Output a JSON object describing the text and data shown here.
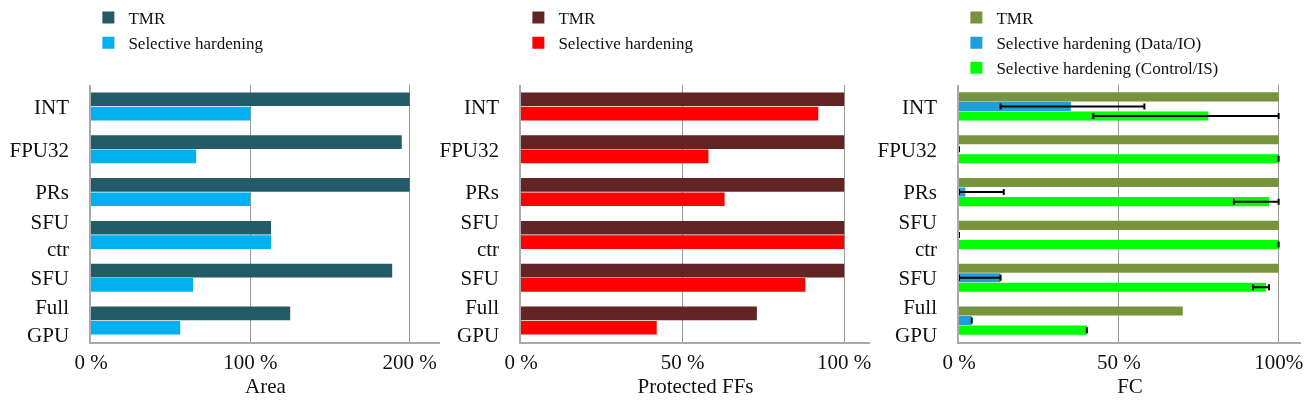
{
  "chart_data": [
    {
      "type": "bar",
      "orientation": "horizontal",
      "xlabel": "Area",
      "categories": [
        "INT",
        "FPU32",
        "PRs",
        "SFU ctr",
        "SFU",
        "Full GPU"
      ],
      "series": [
        {
          "name": "TMR",
          "color": "#245b68",
          "values": [
            200,
            195,
            200,
            113,
            189,
            125
          ]
        },
        {
          "name": "Selective hardening",
          "color": "#00b0f0",
          "values": [
            100,
            66,
            100,
            113,
            64,
            56
          ]
        }
      ],
      "xlim": [
        0,
        219
      ],
      "xticks": [
        {
          "value": 0,
          "label": "0 %"
        },
        {
          "value": 100,
          "label": "100 %"
        },
        {
          "value": 200,
          "label": "200 %"
        }
      ],
      "grid": "x",
      "legend": "top left"
    },
    {
      "type": "bar",
      "orientation": "horizontal",
      "xlabel": "Protected FFs",
      "categories": [
        "INT",
        "FPU32",
        "PRs",
        "SFU ctr",
        "SFU",
        "Full GPU"
      ],
      "series": [
        {
          "name": "TMR",
          "color": "#632523",
          "values": [
            100,
            100,
            100,
            100,
            100,
            73
          ]
        },
        {
          "name": "Selective hardening",
          "color": "#ff0000",
          "values": [
            92,
            58,
            63,
            100,
            88,
            42
          ]
        }
      ],
      "xlim": [
        0,
        108
      ],
      "xticks": [
        {
          "value": 0,
          "label": "0 %"
        },
        {
          "value": 50,
          "label": "50 %"
        },
        {
          "value": 100,
          "label": "100 %"
        }
      ],
      "grid": "x",
      "legend": "top left"
    },
    {
      "type": "bar",
      "orientation": "horizontal",
      "xlabel": "FC",
      "categories": [
        "INT",
        "FPU32",
        "PRs",
        "SFU ctr",
        "SFU",
        "Full GPU"
      ],
      "series": [
        {
          "name": "TMR",
          "color": "#77933c",
          "values": [
            100,
            100,
            100,
            100,
            100,
            70
          ]
        },
        {
          "name": "Selective hardening (Data/IO)",
          "color": "#1e9fdc",
          "values": [
            35,
            0,
            2,
            0,
            13,
            4
          ],
          "errors": [
            [
              13,
              58
            ],
            null,
            [
              0,
              14
            ],
            null,
            [
              0,
              13
            ],
            null
          ]
        },
        {
          "name": "Selective hardening (Control/IS)",
          "color": "#00ff00",
          "values": [
            78,
            100,
            97,
            100,
            96,
            40
          ],
          "errors": [
            [
              42,
              100
            ],
            null,
            [
              86,
              100
            ],
            null,
            [
              92,
              97
            ],
            null
          ]
        }
      ],
      "xlim": [
        0,
        107
      ],
      "xticks": [
        {
          "value": 0,
          "label": "0 %"
        },
        {
          "value": 50,
          "label": "50 %"
        },
        {
          "value": 100,
          "label": "100%"
        }
      ],
      "grid": "x",
      "legend": "top left"
    }
  ]
}
